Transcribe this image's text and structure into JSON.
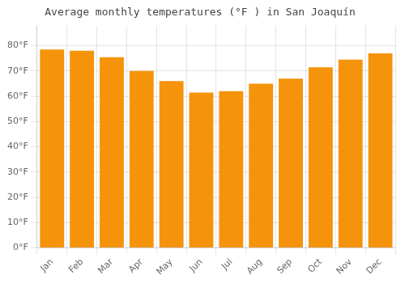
{
  "chart_data": {
    "type": "bar",
    "title": "Average monthly temperatures (°F ) in San Joaquín",
    "categories": [
      "Jan",
      "Feb",
      "Mar",
      "Apr",
      "May",
      "Jun",
      "Jul",
      "Aug",
      "Sep",
      "Oct",
      "Nov",
      "Dec"
    ],
    "values": [
      78.5,
      78.0,
      75.5,
      70.0,
      66.0,
      61.5,
      62.0,
      65.0,
      67.0,
      71.5,
      74.5,
      77.0
    ],
    "color": "#F5930A",
    "ylim": [
      0,
      88
    ],
    "yticks": [
      {
        "value": 0,
        "label": "0°F"
      },
      {
        "value": 10,
        "label": "10°F"
      },
      {
        "value": 20,
        "label": "20°F"
      },
      {
        "value": 30,
        "label": "30°F"
      },
      {
        "value": 40,
        "label": "40°F"
      },
      {
        "value": 50,
        "label": "50°F"
      },
      {
        "value": 60,
        "label": "60°F"
      },
      {
        "value": 70,
        "label": "70°F"
      },
      {
        "value": 80,
        "label": "80°F"
      }
    ],
    "grid": true
  }
}
